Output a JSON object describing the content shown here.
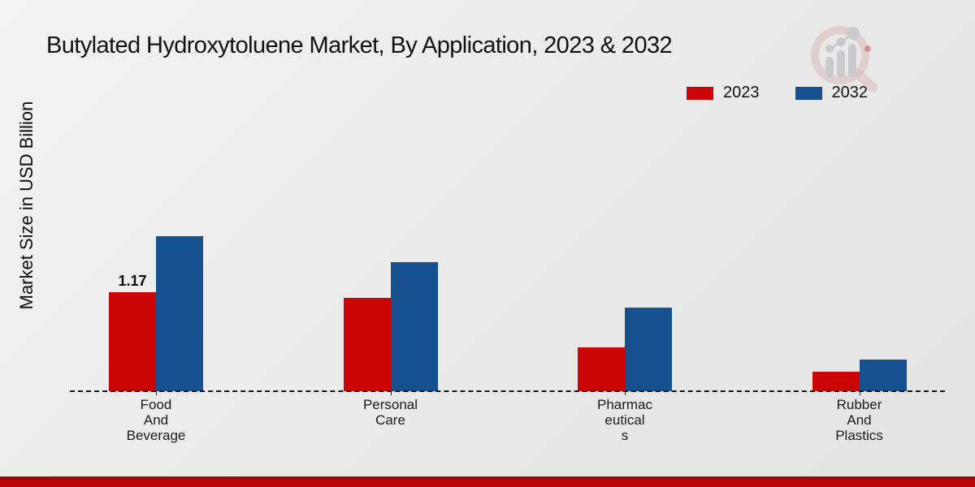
{
  "chart_data": {
    "type": "bar",
    "title": "Butylated Hydroxytoluene Market, By Application, 2023 & 2032",
    "ylabel": "Market Size in USD Billion",
    "xlabel": "",
    "categories": [
      "Food\nAnd\nBeverage",
      "Personal\nCare",
      "Pharmac\neutical\ns",
      "Rubber\nAnd\nPlastics"
    ],
    "series": [
      {
        "name": "2023",
        "color": "#cc0606",
        "values": [
          1.17,
          1.1,
          0.52,
          0.23
        ],
        "data_labels": [
          "1.17",
          "",
          "",
          ""
        ]
      },
      {
        "name": "2032",
        "color": "#17508f",
        "values": [
          1.83,
          1.52,
          0.99,
          0.37
        ],
        "data_labels": [
          "",
          "",
          "",
          ""
        ]
      }
    ],
    "legend_position": "top-right",
    "grid": "off",
    "baseline_style": "dashed",
    "ylim": [
      0,
      2.6
    ],
    "shown_data_labels_note": "only first 2023 bar shows value 1.17"
  },
  "footer": {
    "band_color": "#c10404"
  },
  "watermark": {
    "name": "market-research-magnifier-logo",
    "ring_color": "#d9b4b4",
    "bars_color": "#c7c7cb"
  }
}
